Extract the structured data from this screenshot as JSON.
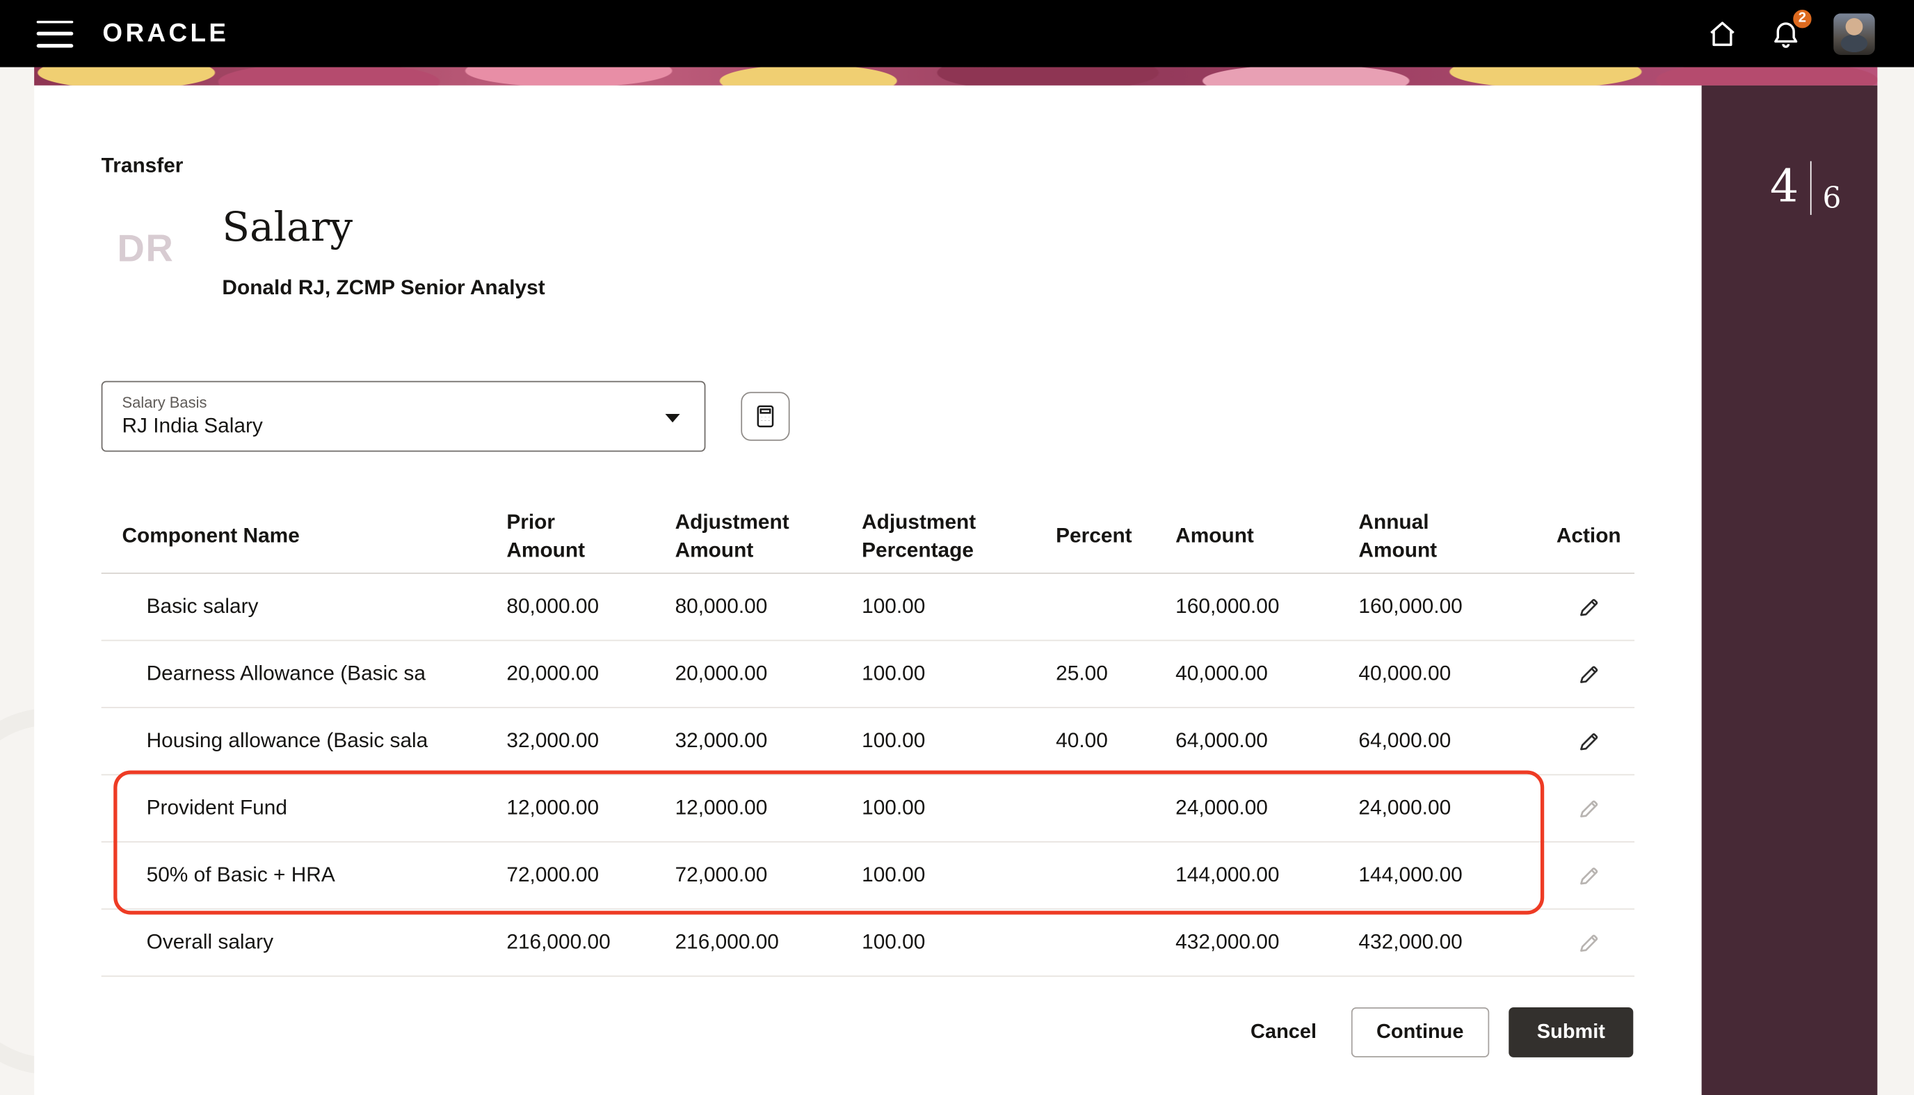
{
  "header": {
    "brand": "ORACLE",
    "notification_badge": "2"
  },
  "page": {
    "eyebrow": "Transfer",
    "monogram": "DR",
    "title": "Salary",
    "subtitle": "Donald RJ, ZCMP Senior Analyst",
    "step": {
      "current": "4",
      "total": "6"
    }
  },
  "salary_basis": {
    "label": "Salary Basis",
    "value": "RJ India Salary"
  },
  "table": {
    "columns": [
      "Component Name",
      "Prior Amount",
      "Adjustment Amount",
      "Adjustment Percentage",
      "Percent",
      "Amount",
      "Annual Amount",
      "Action"
    ],
    "rows": [
      {
        "component": "Basic salary",
        "prior": "80,000.00",
        "adjustment": "80,000.00",
        "adj_pct": "100.00",
        "percent": "",
        "amount": "160,000.00",
        "annual": "160,000.00",
        "editable": true
      },
      {
        "component": "Dearness Allowance (Basic sa",
        "prior": "20,000.00",
        "adjustment": "20,000.00",
        "adj_pct": "100.00",
        "percent": "25.00",
        "amount": "40,000.00",
        "annual": "40,000.00",
        "editable": true
      },
      {
        "component": "Housing allowance (Basic sala",
        "prior": "32,000.00",
        "adjustment": "32,000.00",
        "adj_pct": "100.00",
        "percent": "40.00",
        "amount": "64,000.00",
        "annual": "64,000.00",
        "editable": true
      },
      {
        "component": "Provident Fund",
        "prior": "12,000.00",
        "adjustment": "12,000.00",
        "adj_pct": "100.00",
        "percent": "",
        "amount": "24,000.00",
        "annual": "24,000.00",
        "editable": false
      },
      {
        "component": "50% of Basic + HRA",
        "prior": "72,000.00",
        "adjustment": "72,000.00",
        "adj_pct": "100.00",
        "percent": "",
        "amount": "144,000.00",
        "annual": "144,000.00",
        "editable": false
      },
      {
        "component": "Overall salary",
        "prior": "216,000.00",
        "adjustment": "216,000.00",
        "adj_pct": "100.00",
        "percent": "",
        "amount": "432,000.00",
        "annual": "432,000.00",
        "editable": false
      }
    ],
    "highlighted_rows": [
      3,
      4
    ]
  },
  "actions": {
    "cancel": "Cancel",
    "continue": "Continue",
    "submit": "Submit"
  },
  "colors": {
    "accent_red": "#ee3b24",
    "panel_maroon": "#472936",
    "badge_orange": "#dd6a1f",
    "submit_bg": "#33302d"
  }
}
